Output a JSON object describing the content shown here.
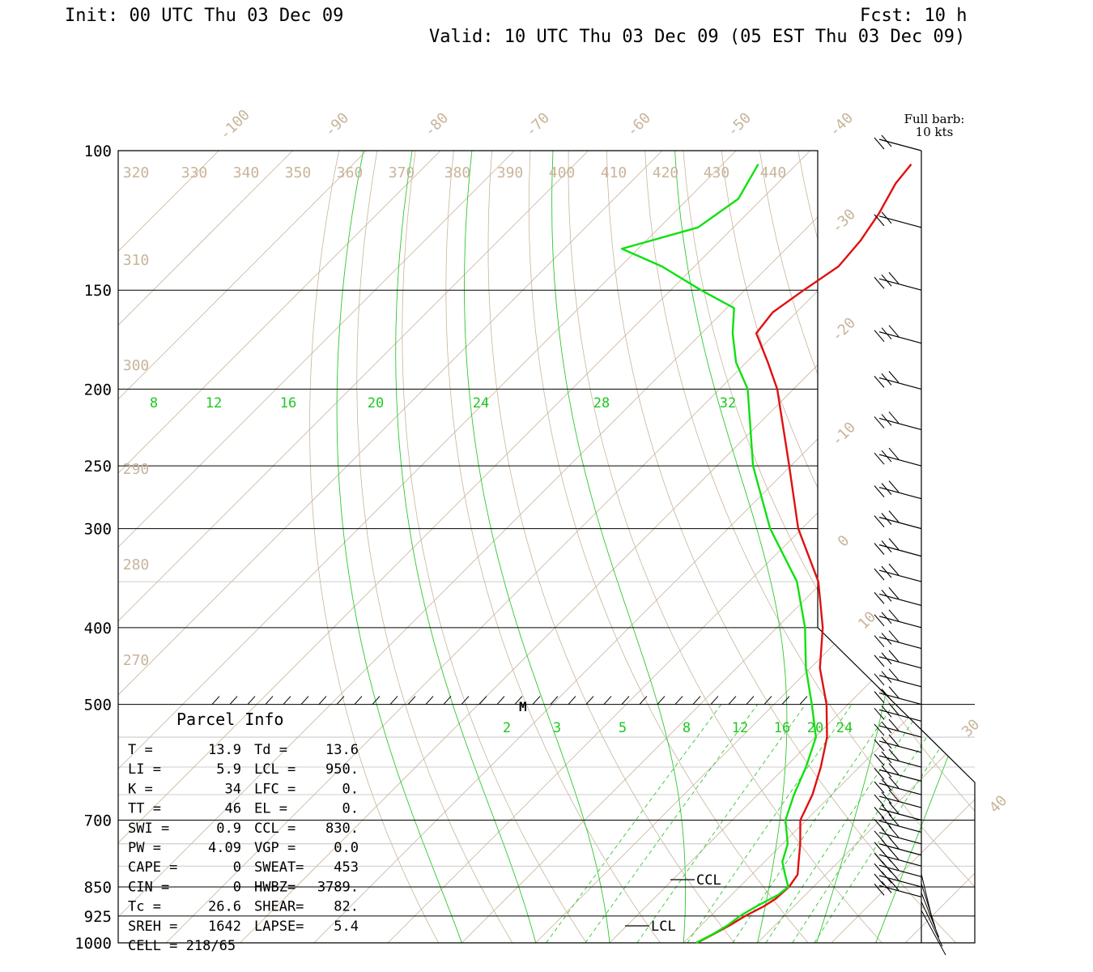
{
  "header": {
    "init": "Init: 00 UTC Thu 03 Dec 09",
    "fcst": "Fcst:   10 h",
    "valid": "Valid: 10 UTC Thu 03 Dec 09 (05 EST Thu 03 Dec 09)"
  },
  "barb_legend": {
    "line1": "Full barb:",
    "line2": "10 kts"
  },
  "colors": {
    "temperature": "#e01010",
    "dewpoint": "#10e010",
    "isotherm": "#c8b49a",
    "mixing_ratio": "#1ec81e",
    "axes": "#000000"
  },
  "parcel_info": {
    "title": "Parcel Info",
    "rows": [
      [
        "T  =",
        "13.9",
        "Td =",
        "13.6"
      ],
      [
        "LI =",
        "5.9",
        "LCL =",
        "950."
      ],
      [
        "K  =",
        "34",
        "LFC =",
        "0."
      ],
      [
        "TT =",
        "46",
        "EL  =",
        "0."
      ],
      [
        "SWI =",
        "0.9",
        "CCL =",
        "830."
      ],
      [
        "PW =",
        "4.09",
        "VGP =",
        "0.0"
      ],
      [
        "CAPE =",
        "0",
        "SWEAT=",
        "453"
      ],
      [
        "CIN =",
        "0",
        "HWBZ=",
        "3789."
      ],
      [
        "Tc =",
        "26.6",
        "SHEAR=",
        "82."
      ],
      [
        "SREH =",
        "1642",
        "LAPSE=",
        "5.4"
      ],
      [
        "CELL = 218/65",
        "",
        "",
        ""
      ]
    ]
  },
  "markers": {
    "ccl": "CCL",
    "lcl": "LCL",
    "m": "M"
  },
  "chart_data": {
    "type": "line",
    "title": "",
    "pressure_ticks": [
      "100",
      "150",
      "200",
      "250",
      "300",
      "400",
      "500",
      "700",
      "850",
      "925",
      "1000"
    ],
    "isotherm_labels_top": [
      "-100",
      "-90",
      "-80",
      "-70",
      "-60",
      "-50",
      "-40"
    ],
    "isotherm_labels_right": [
      "-30",
      "-20",
      "-10",
      "0",
      "10",
      "30",
      "40"
    ],
    "theta_labels_top": [
      "320",
      "330",
      "340",
      "350",
      "360",
      "370",
      "380",
      "390",
      "400",
      "410",
      "420",
      "430",
      "440"
    ],
    "theta_labels_left": [
      "310",
      "300",
      "290",
      "280",
      "270"
    ],
    "mixing_ratio_labels_upper": [
      "8",
      "12",
      "16",
      "20",
      "24",
      "28",
      "32"
    ],
    "mixing_ratio_labels_lower": [
      "2",
      "3",
      "5",
      "8",
      "12",
      "16",
      "20",
      "24"
    ],
    "series": [
      {
        "points": [
          [
            1000,
            11.8
          ],
          [
            975,
            12.9
          ],
          [
            950,
            13.9
          ],
          [
            925,
            14.7
          ],
          [
            900,
            15.9
          ],
          [
            880,
            16.5
          ],
          [
            850,
            16.7
          ],
          [
            820,
            16.2
          ],
          [
            790,
            14.6
          ],
          [
            750,
            12.4
          ],
          [
            700,
            9.2
          ],
          [
            650,
            7.4
          ],
          [
            600,
            4.8
          ],
          [
            550,
            1.6
          ],
          [
            500,
            -2.9
          ],
          [
            450,
            -8.7
          ],
          [
            400,
            -13.8
          ],
          [
            350,
            -20.6
          ],
          [
            300,
            -30.5
          ],
          [
            250,
            -40.2
          ],
          [
            200,
            -52.2
          ],
          [
            185,
            -57.1
          ],
          [
            170,
            -62.6
          ],
          [
            160,
            -63.2
          ],
          [
            150,
            -62.0
          ],
          [
            140,
            -60.5
          ],
          [
            130,
            -61.0
          ],
          [
            120,
            -62.2
          ],
          [
            110,
            -64.0
          ],
          [
            104,
            -64.5
          ]
        ]
      },
      {
        "points": [
          [
            1000,
            11.7
          ],
          [
            975,
            12.8
          ],
          [
            950,
            13.6
          ],
          [
            925,
            14.0
          ],
          [
            900,
            14.9
          ],
          [
            870,
            16.3
          ],
          [
            850,
            16.6
          ],
          [
            820,
            14.5
          ],
          [
            790,
            12.4
          ],
          [
            750,
            10.7
          ],
          [
            700,
            7.2
          ],
          [
            650,
            4.9
          ],
          [
            600,
            2.8
          ],
          [
            550,
            0.1
          ],
          [
            500,
            -4.9
          ],
          [
            450,
            -10.6
          ],
          [
            400,
            -16.2
          ],
          [
            350,
            -23.5
          ],
          [
            300,
            -34.3
          ],
          [
            250,
            -45.1
          ],
          [
            200,
            -56.2
          ],
          [
            185,
            -61.4
          ],
          [
            170,
            -65.8
          ],
          [
            158,
            -69.0
          ],
          [
            150,
            -75.9
          ],
          [
            140,
            -84.4
          ],
          [
            133,
            -92.2
          ],
          [
            125,
            -84.8
          ],
          [
            115,
            -83.2
          ],
          [
            104,
            -85.2
          ]
        ]
      }
    ],
    "wind_barbs": [
      {
        "p": 1000
      },
      {
        "p": 975
      },
      {
        "p": 950
      },
      {
        "p": 925
      },
      {
        "p": 900
      },
      {
        "p": 875
      },
      {
        "p": 850
      },
      {
        "p": 825
      },
      {
        "p": 800
      },
      {
        "p": 775
      },
      {
        "p": 750
      },
      {
        "p": 725
      },
      {
        "p": 700
      },
      {
        "p": 675
      },
      {
        "p": 650
      },
      {
        "p": 625
      },
      {
        "p": 600
      },
      {
        "p": 575
      },
      {
        "p": 550
      },
      {
        "p": 525
      },
      {
        "p": 500
      },
      {
        "p": 475
      },
      {
        "p": 450
      },
      {
        "p": 425
      },
      {
        "p": 400
      },
      {
        "p": 375
      },
      {
        "p": 350
      },
      {
        "p": 325
      },
      {
        "p": 300
      },
      {
        "p": 275
      },
      {
        "p": 250
      },
      {
        "p": 225
      },
      {
        "p": 200
      },
      {
        "p": 175
      },
      {
        "p": 150
      },
      {
        "p": 125
      },
      {
        "p": 100
      }
    ]
  }
}
